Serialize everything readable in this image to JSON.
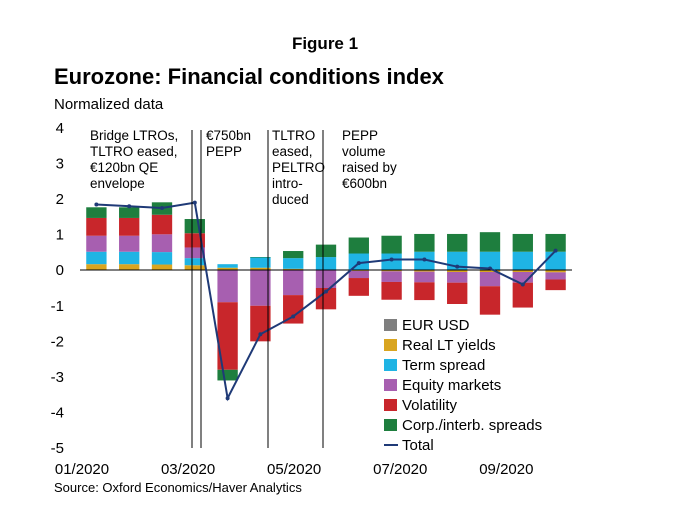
{
  "figure_label": "Figure 1",
  "chart_data": {
    "type": "bar",
    "title": "Eurozone: Financial conditions index",
    "ylabel": "Normalized data",
    "ylim": [
      -5,
      4
    ],
    "yticks": [
      "4",
      "3",
      "2",
      "1",
      "0",
      "-1",
      "-2",
      "-3",
      "-4",
      "-5"
    ],
    "xticks": [
      "01/2020",
      "03/2020",
      "05/2020",
      "07/2020",
      "09/2020"
    ],
    "source": "Source: Oxford Economics/Haver Analytics",
    "stacked": true,
    "annotations": [
      {
        "text": [
          "Bridge LTROs,",
          "TLTRO eased,",
          "€120bn QE",
          "envelope"
        ],
        "date": "03/2020"
      },
      {
        "text": [
          "€750bn",
          "PEPP"
        ],
        "date": "03/2020"
      },
      {
        "text": [
          "TLTRO",
          "eased,",
          "PELTRO",
          "intro-",
          "duced"
        ],
        "date": "04/2020"
      },
      {
        "text": [
          "PEPP",
          "volume",
          "raised by",
          "€600bn"
        ],
        "date": "06/2020"
      }
    ],
    "series": [
      {
        "name": "EUR USD",
        "color": "#7f7f7f",
        "values": [
          0.02,
          0.02,
          0.02,
          0.02,
          0.02,
          0.02,
          0.02,
          0.02,
          0.02,
          0.02,
          0.02,
          0.02,
          0.02,
          0.02,
          0.02
        ]
      },
      {
        "name": "Real LT yields",
        "color": "#d9a520",
        "values": [
          0.15,
          0.15,
          0.14,
          0.12,
          0.05,
          0.05,
          0.02,
          0.0,
          -0.02,
          -0.03,
          -0.04,
          -0.05,
          -0.05,
          -0.05,
          -0.06
        ]
      },
      {
        "name": "Term spread",
        "color": "#1fb4e4",
        "values": [
          0.35,
          0.35,
          0.35,
          0.2,
          0.1,
          0.3,
          0.3,
          0.35,
          0.45,
          0.45,
          0.5,
          0.5,
          0.5,
          0.5,
          0.5
        ]
      },
      {
        "name": "Equity markets",
        "color": "#a75fb0",
        "values": [
          0.45,
          0.45,
          0.5,
          0.3,
          -0.9,
          -1.0,
          -0.7,
          -0.5,
          -0.2,
          -0.3,
          -0.3,
          -0.3,
          -0.4,
          -0.3,
          -0.2
        ]
      },
      {
        "name": "Volatility",
        "color": "#c8262b",
        "values": [
          0.5,
          0.5,
          0.55,
          0.4,
          -1.9,
          -1.0,
          -0.8,
          -0.6,
          -0.5,
          -0.5,
          -0.5,
          -0.6,
          -0.8,
          -0.7,
          -0.3
        ]
      },
      {
        "name": "Corp./interb. spreads",
        "color": "#1e7e3e",
        "values": [
          0.3,
          0.3,
          0.35,
          0.4,
          -0.3,
          0.0,
          0.2,
          0.35,
          0.45,
          0.5,
          0.5,
          0.5,
          0.55,
          0.5,
          0.5
        ]
      },
      {
        "name": "Total",
        "color": "#1f3a77",
        "values": [
          1.85,
          1.8,
          1.75,
          1.9,
          -3.6,
          -1.8,
          -1.3,
          -0.6,
          0.2,
          0.3,
          0.3,
          0.1,
          0.05,
          -0.4,
          0.55
        ]
      }
    ],
    "x": [
      "01/2020",
      "01/2020",
      "02/2020",
      "02/2020",
      "03/2020",
      "04/2020",
      "04/2020",
      "05/2020",
      "06/2020",
      "07/2020",
      "08/2020",
      "09/2020",
      "10/2020",
      "11/2020",
      "11/2020"
    ]
  }
}
